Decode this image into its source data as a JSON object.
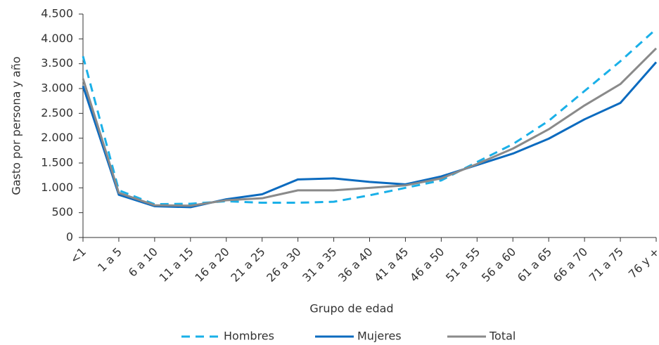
{
  "chart_data": {
    "type": "line",
    "x_label": "Grupo de edad",
    "y_label": "Gasto por persona y año",
    "categories": [
      "<1",
      "1 a 5",
      "6 a 10",
      "11 a 15",
      "16 a 20",
      "21 a 25",
      "26 a 30",
      "31 a 35",
      "36 a 40",
      "41 a 45",
      "46 a 50",
      "51 a 55",
      "56 a 60",
      "61 a 65",
      "66 a 70",
      "71 a 75",
      "76 y +"
    ],
    "series": [
      {
        "name": "Hombres",
        "color": "#1ab0e8",
        "dashed": true,
        "values": [
          3650,
          950,
          670,
          680,
          730,
          700,
          700,
          720,
          850,
          1000,
          1150,
          1520,
          1880,
          2350,
          2950,
          3550,
          4200
        ]
      },
      {
        "name": "Mujeres",
        "color": "#0c6bbf",
        "dashed": false,
        "values": [
          3050,
          860,
          630,
          610,
          770,
          870,
          1170,
          1190,
          1120,
          1070,
          1230,
          1460,
          1690,
          1990,
          2380,
          2710,
          3530
        ]
      },
      {
        "name": "Total",
        "color": "#8a8a8a",
        "dashed": false,
        "values": [
          3200,
          900,
          650,
          640,
          750,
          790,
          950,
          950,
          1000,
          1050,
          1190,
          1480,
          1790,
          2180,
          2660,
          3090,
          3810
        ]
      }
    ],
    "ylim": [
      0,
      4500
    ],
    "yticks": [
      0,
      500,
      {
        "value": 1000,
        "label": "1.000"
      },
      {
        "value": 1500,
        "label": "1.500"
      },
      {
        "value": 2000,
        "label": "2.000"
      },
      {
        "value": 2500,
        "label": "2.500"
      },
      {
        "value": 3000,
        "label": "3.000"
      },
      {
        "value": 3500,
        "label": "3.500"
      },
      {
        "value": 4000,
        "label": "4.000"
      },
      {
        "value": 4500,
        "label": "4.500"
      }
    ],
    "grid": false,
    "legend": "bottom"
  }
}
